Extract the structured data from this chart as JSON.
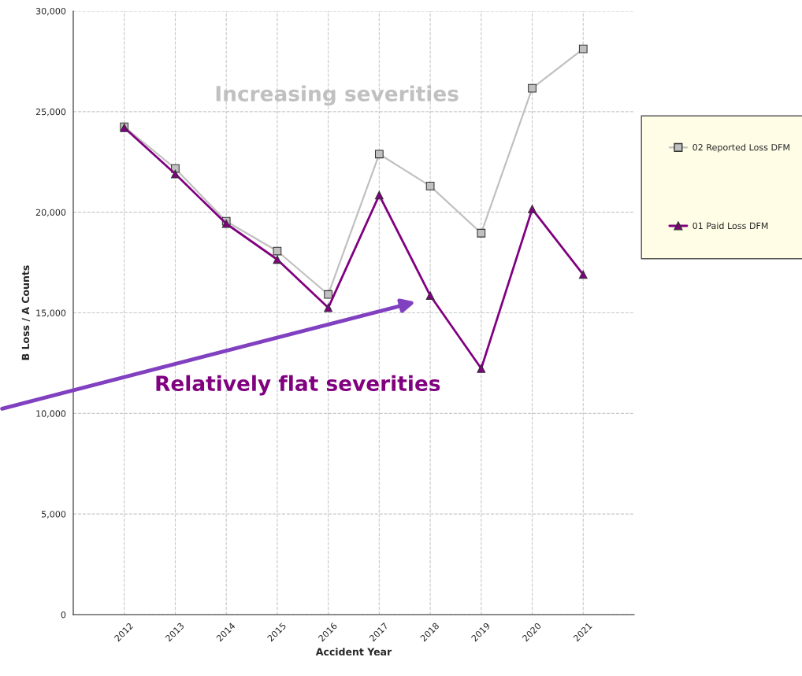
{
  "chart_data": {
    "type": "line",
    "xlabel": "Accident Year",
    "ylabel": "B Loss / A Counts",
    "categories": [
      "2012",
      "2013",
      "2014",
      "2015",
      "2016",
      "2017",
      "2018",
      "2019",
      "2020",
      "2021"
    ],
    "series": [
      {
        "name": "02 Reported Loss DFM",
        "color": "#c0c0c0",
        "marker": "square",
        "values": [
          24250,
          22170,
          19550,
          18070,
          15910,
          22890,
          21300,
          18960,
          26160,
          28120
        ]
      },
      {
        "name": "01 Paid Loss DFM",
        "color": "#800080",
        "marker": "triangle",
        "values": [
          24200,
          21900,
          19430,
          17650,
          15250,
          20850,
          15860,
          12230,
          20160,
          16900
        ]
      }
    ],
    "ylim": [
      0,
      30000
    ],
    "yticks": [
      {
        "value": 0,
        "label": "0"
      },
      {
        "value": 5000,
        "label": "5,000"
      },
      {
        "value": 10000,
        "label": "10,000"
      },
      {
        "value": 15000,
        "label": "15,000"
      },
      {
        "value": 20000,
        "label": "20,000"
      },
      {
        "value": 25000,
        "label": "25,000"
      },
      {
        "value": 30000,
        "label": "30,000"
      }
    ],
    "grid": true,
    "legend": "right",
    "line_style": "solid",
    "annotations": [
      "Increasing severities",
      "Relatively flat severities"
    ]
  }
}
